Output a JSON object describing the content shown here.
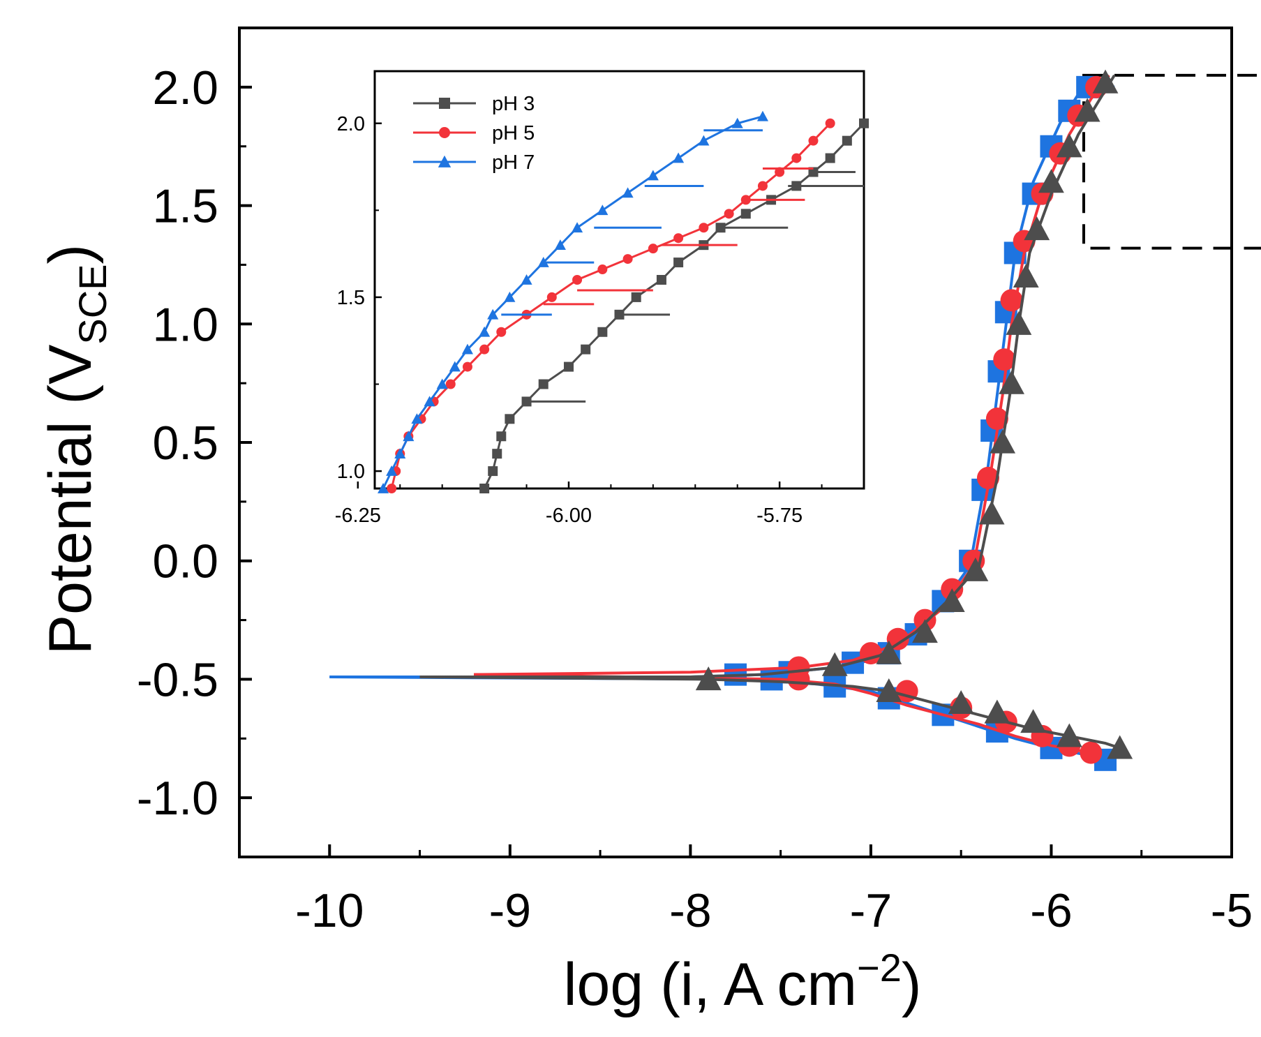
{
  "chart_data": [
    {
      "type": "line",
      "role": "main",
      "title": "",
      "xlabel": "log (i, A cm",
      "xlabel_sup": "−2",
      "xlabel_close": ")",
      "ylabel": "Potential (V",
      "ylabel_sub": "SCE",
      "ylabel_close": ")",
      "xlim": [
        -10.5,
        -5
      ],
      "ylim": [
        -1.25,
        2.25
      ],
      "x_ticks": [
        -10,
        -9,
        -8,
        -7,
        -6,
        -5
      ],
      "x_tick_labels": [
        "-10",
        "-9",
        "-8",
        "-7",
        "-6",
        "-5"
      ],
      "y_ticks": [
        -1.0,
        -0.5,
        0.0,
        0.5,
        1.0,
        1.5,
        2.0
      ],
      "y_tick_labels": [
        "-1.0",
        "-0.5",
        "0.0",
        "0.5",
        "1.0",
        "1.5",
        "2.0"
      ],
      "zoom_box": {
        "x": [
          -5.82,
          -4.78
        ],
        "y": [
          1.32,
          2.05
        ]
      },
      "series": [
        {
          "name": "pH 7",
          "color": "#1e74e0",
          "marker": "square",
          "line": [
            [
              -10.0,
              -0.49
            ],
            [
              -8.0,
              -0.49
            ],
            [
              -7.6,
              -0.48
            ],
            [
              -7.2,
              -0.45
            ],
            [
              -7.0,
              -0.42
            ],
            [
              -6.8,
              -0.33
            ],
            [
              -6.6,
              -0.18
            ],
            [
              -6.45,
              -0.02
            ],
            [
              -6.35,
              0.4
            ],
            [
              -6.3,
              0.7
            ],
            [
              -6.25,
              1.0
            ],
            [
              -6.2,
              1.3
            ],
            [
              -6.1,
              1.6
            ],
            [
              -5.95,
              1.85
            ],
            [
              -5.8,
              2.03
            ],
            [
              -5.65,
              2.0
            ]
          ],
          "cathodic": [
            [
              -10.0,
              -0.49
            ],
            [
              -7.7,
              -0.5
            ],
            [
              -7.3,
              -0.52
            ],
            [
              -7.0,
              -0.55
            ],
            [
              -6.8,
              -0.6
            ],
            [
              -6.6,
              -0.65
            ],
            [
              -6.4,
              -0.7
            ],
            [
              -6.2,
              -0.75
            ],
            [
              -6.0,
              -0.79
            ],
            [
              -5.8,
              -0.82
            ],
            [
              -5.68,
              -0.84
            ]
          ],
          "markers": [
            [
              -7.75,
              -0.48
            ],
            [
              -7.45,
              -0.47
            ],
            [
              -7.1,
              -0.43
            ],
            [
              -6.9,
              -0.39
            ],
            [
              -6.75,
              -0.31
            ],
            [
              -6.6,
              -0.17
            ],
            [
              -6.45,
              0.0
            ],
            [
              -6.38,
              0.3
            ],
            [
              -6.33,
              0.55
            ],
            [
              -6.29,
              0.8
            ],
            [
              -6.25,
              1.05
            ],
            [
              -6.2,
              1.3
            ],
            [
              -6.1,
              1.55
            ],
            [
              -6.0,
              1.75
            ],
            [
              -5.9,
              1.9
            ],
            [
              -5.8,
              2.0
            ],
            [
              -7.55,
              -0.5
            ],
            [
              -7.2,
              -0.53
            ],
            [
              -6.9,
              -0.58
            ],
            [
              -6.6,
              -0.65
            ],
            [
              -6.3,
              -0.72
            ],
            [
              -6.0,
              -0.79
            ],
            [
              -5.7,
              -0.84
            ]
          ]
        },
        {
          "name": "pH 5",
          "color": "#f2333a",
          "marker": "circle",
          "line": [
            [
              -9.2,
              -0.48
            ],
            [
              -8.0,
              -0.47
            ],
            [
              -7.4,
              -0.45
            ],
            [
              -7.1,
              -0.42
            ],
            [
              -6.85,
              -0.35
            ],
            [
              -6.6,
              -0.2
            ],
            [
              -6.43,
              -0.02
            ],
            [
              -6.33,
              0.4
            ],
            [
              -6.27,
              0.7
            ],
            [
              -6.22,
              1.0
            ],
            [
              -6.15,
              1.3
            ],
            [
              -6.05,
              1.55
            ],
            [
              -5.9,
              1.8
            ],
            [
              -5.78,
              1.95
            ],
            [
              -5.68,
              2.05
            ]
          ],
          "cathodic": [
            [
              -9.2,
              -0.48
            ],
            [
              -7.5,
              -0.5
            ],
            [
              -7.2,
              -0.52
            ],
            [
              -7.0,
              -0.56
            ],
            [
              -6.8,
              -0.61
            ],
            [
              -6.6,
              -0.65
            ],
            [
              -6.4,
              -0.69
            ],
            [
              -6.2,
              -0.74
            ],
            [
              -6.0,
              -0.78
            ],
            [
              -5.78,
              -0.81
            ]
          ],
          "markers": [
            [
              -7.4,
              -0.45
            ],
            [
              -7.4,
              -0.5
            ],
            [
              -7.0,
              -0.39
            ],
            [
              -6.85,
              -0.33
            ],
            [
              -6.7,
              -0.25
            ],
            [
              -6.55,
              -0.12
            ],
            [
              -6.43,
              0.0
            ],
            [
              -6.35,
              0.35
            ],
            [
              -6.3,
              0.6
            ],
            [
              -6.26,
              0.85
            ],
            [
              -6.22,
              1.1
            ],
            [
              -6.15,
              1.35
            ],
            [
              -6.05,
              1.55
            ],
            [
              -5.95,
              1.72
            ],
            [
              -5.85,
              1.88
            ],
            [
              -5.75,
              2.0
            ],
            [
              -6.8,
              -0.55
            ],
            [
              -6.5,
              -0.62
            ],
            [
              -6.25,
              -0.68
            ],
            [
              -6.05,
              -0.74
            ],
            [
              -5.9,
              -0.78
            ],
            [
              -5.78,
              -0.81
            ]
          ]
        },
        {
          "name": "pH 3",
          "color": "#4d4d4d",
          "marker": "triangle",
          "line": [
            [
              -9.5,
              -0.49
            ],
            [
              -8.0,
              -0.49
            ],
            [
              -7.6,
              -0.48
            ],
            [
              -7.2,
              -0.45
            ],
            [
              -6.95,
              -0.4
            ],
            [
              -6.75,
              -0.3
            ],
            [
              -6.55,
              -0.15
            ],
            [
              -6.4,
              -0.02
            ],
            [
              -6.3,
              0.35
            ],
            [
              -6.23,
              0.7
            ],
            [
              -6.18,
              1.0
            ],
            [
              -6.12,
              1.3
            ],
            [
              -6.0,
              1.55
            ],
            [
              -5.85,
              1.8
            ],
            [
              -5.73,
              1.95
            ],
            [
              -5.65,
              2.05
            ]
          ],
          "cathodic": [
            [
              -9.5,
              -0.49
            ],
            [
              -7.9,
              -0.5
            ],
            [
              -7.5,
              -0.51
            ],
            [
              -7.1,
              -0.53
            ],
            [
              -6.9,
              -0.55
            ],
            [
              -6.7,
              -0.59
            ],
            [
              -6.5,
              -0.63
            ],
            [
              -6.3,
              -0.67
            ],
            [
              -6.1,
              -0.71
            ],
            [
              -5.9,
              -0.74
            ],
            [
              -5.7,
              -0.77
            ],
            [
              -5.62,
              -0.79
            ]
          ],
          "markers": [
            [
              -7.2,
              -0.44
            ],
            [
              -6.9,
              -0.39
            ],
            [
              -6.7,
              -0.3
            ],
            [
              -6.55,
              -0.17
            ],
            [
              -6.42,
              -0.04
            ],
            [
              -6.33,
              0.2
            ],
            [
              -6.27,
              0.5
            ],
            [
              -6.22,
              0.75
            ],
            [
              -6.18,
              1.0
            ],
            [
              -6.14,
              1.2
            ],
            [
              -6.08,
              1.4
            ],
            [
              -6.0,
              1.6
            ],
            [
              -5.9,
              1.75
            ],
            [
              -5.8,
              1.9
            ],
            [
              -5.7,
              2.02
            ],
            [
              -7.9,
              -0.5
            ],
            [
              -6.9,
              -0.55
            ],
            [
              -6.5,
              -0.6
            ],
            [
              -6.3,
              -0.64
            ],
            [
              -6.1,
              -0.68
            ],
            [
              -5.9,
              -0.74
            ],
            [
              -5.62,
              -0.79
            ]
          ]
        }
      ]
    },
    {
      "type": "line",
      "role": "inset",
      "title": "",
      "xlim": [
        -6.23,
        -5.65
      ],
      "ylim": [
        0.95,
        2.15
      ],
      "x_ticks": [
        -6.25,
        -6.0,
        -5.75
      ],
      "x_tick_labels": [
        "-6.25",
        "-6.00",
        "-5.75"
      ],
      "y_ticks": [
        1.0,
        1.5,
        2.0
      ],
      "y_tick_labels": [
        "1.0",
        "1.5",
        "2.0"
      ],
      "legend": [
        "pH 3",
        "pH 5",
        "pH 7"
      ],
      "series": [
        {
          "name": "pH 3",
          "color": "#4d4d4d",
          "marker": "square",
          "points": [
            [
              -6.1,
              0.95
            ],
            [
              -6.09,
              1.0
            ],
            [
              -6.085,
              1.05
            ],
            [
              -6.08,
              1.1
            ],
            [
              -6.07,
              1.15
            ],
            [
              -6.05,
              1.2
            ],
            [
              -6.03,
              1.25
            ],
            [
              -6.0,
              1.3
            ],
            [
              -5.98,
              1.35
            ],
            [
              -5.96,
              1.4
            ],
            [
              -5.94,
              1.45
            ],
            [
              -5.92,
              1.5
            ],
            [
              -5.89,
              1.55
            ],
            [
              -5.87,
              1.6
            ],
            [
              -5.84,
              1.65
            ],
            [
              -5.82,
              1.7
            ],
            [
              -5.79,
              1.74
            ],
            [
              -5.76,
              1.78
            ],
            [
              -5.73,
              1.82
            ],
            [
              -5.71,
              1.86
            ],
            [
              -5.69,
              1.9
            ],
            [
              -5.67,
              1.95
            ],
            [
              -5.65,
              2.0
            ]
          ],
          "spurs": [
            [
              1.2,
              -6.05,
              -5.98
            ],
            [
              1.45,
              -5.94,
              -5.88
            ],
            [
              1.7,
              -5.82,
              -5.74
            ],
            [
              1.82,
              -5.74,
              -5.65
            ],
            [
              1.86,
              -5.71,
              -5.66
            ]
          ]
        },
        {
          "name": "pH 5",
          "color": "#f2333a",
          "marker": "circle",
          "points": [
            [
              -6.21,
              0.95
            ],
            [
              -6.205,
              1.0
            ],
            [
              -6.2,
              1.05
            ],
            [
              -6.19,
              1.1
            ],
            [
              -6.175,
              1.15
            ],
            [
              -6.16,
              1.2
            ],
            [
              -6.14,
              1.25
            ],
            [
              -6.12,
              1.3
            ],
            [
              -6.1,
              1.35
            ],
            [
              -6.08,
              1.4
            ],
            [
              -6.05,
              1.45
            ],
            [
              -6.02,
              1.5
            ],
            [
              -5.99,
              1.55
            ],
            [
              -5.96,
              1.58
            ],
            [
              -5.93,
              1.61
            ],
            [
              -5.9,
              1.64
            ],
            [
              -5.87,
              1.67
            ],
            [
              -5.84,
              1.7
            ],
            [
              -5.81,
              1.74
            ],
            [
              -5.79,
              1.78
            ],
            [
              -5.77,
              1.82
            ],
            [
              -5.75,
              1.86
            ],
            [
              -5.73,
              1.9
            ],
            [
              -5.71,
              1.95
            ],
            [
              -5.69,
              2.0
            ]
          ],
          "spurs": [
            [
              1.48,
              -6.03,
              -5.97
            ],
            [
              1.52,
              -5.99,
              -5.9
            ],
            [
              1.65,
              -5.89,
              -5.8
            ],
            [
              1.78,
              -5.79,
              -5.72
            ],
            [
              1.87,
              -5.77,
              -5.71
            ]
          ]
        },
        {
          "name": "pH 7",
          "color": "#1e74e0",
          "marker": "triangle",
          "points": [
            [
              -6.22,
              0.95
            ],
            [
              -6.21,
              1.0
            ],
            [
              -6.2,
              1.05
            ],
            [
              -6.19,
              1.1
            ],
            [
              -6.18,
              1.15
            ],
            [
              -6.165,
              1.2
            ],
            [
              -6.15,
              1.25
            ],
            [
              -6.135,
              1.3
            ],
            [
              -6.12,
              1.35
            ],
            [
              -6.1,
              1.4
            ],
            [
              -6.09,
              1.45
            ],
            [
              -6.07,
              1.5
            ],
            [
              -6.05,
              1.55
            ],
            [
              -6.03,
              1.6
            ],
            [
              -6.01,
              1.65
            ],
            [
              -5.99,
              1.7
            ],
            [
              -5.96,
              1.75
            ],
            [
              -5.93,
              1.8
            ],
            [
              -5.9,
              1.85
            ],
            [
              -5.87,
              1.9
            ],
            [
              -5.84,
              1.95
            ],
            [
              -5.8,
              2.0
            ],
            [
              -5.77,
              2.02
            ]
          ],
          "spurs": [
            [
              1.45,
              -6.08,
              -6.02
            ],
            [
              1.6,
              -6.03,
              -5.97
            ],
            [
              1.7,
              -5.97,
              -5.89
            ],
            [
              1.82,
              -5.91,
              -5.84
            ],
            [
              1.98,
              -5.84,
              -5.77
            ]
          ]
        }
      ]
    }
  ]
}
